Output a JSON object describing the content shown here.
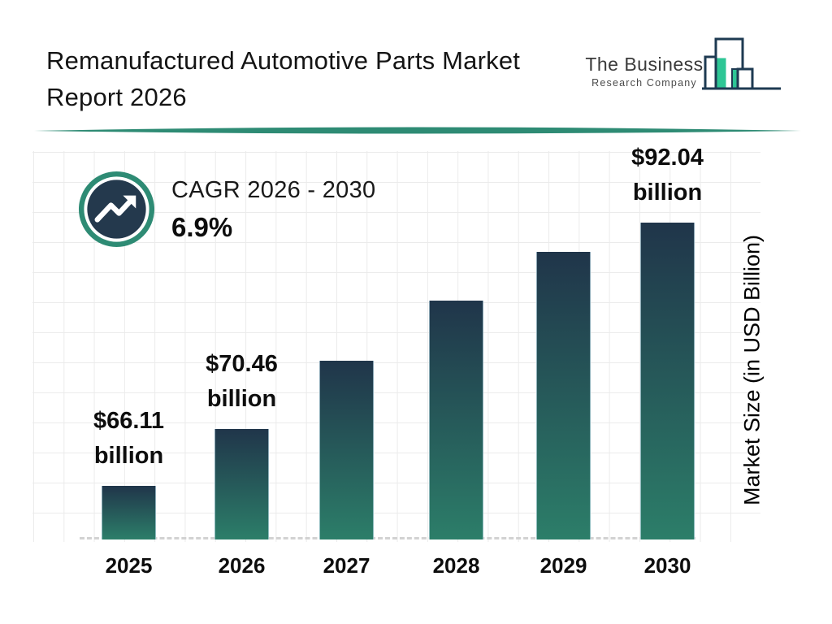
{
  "header": {
    "title": "Remanufactured Automotive Parts Market Report 2026",
    "logo": {
      "name_line1": "The Business",
      "name_line2": "Research Company"
    }
  },
  "cagr": {
    "label": "CAGR 2026 - 2030",
    "value": "6.9%"
  },
  "chart_data": {
    "type": "bar",
    "title": "Remanufactured Automotive Parts Market Report 2026",
    "categories": [
      "2025",
      "2026",
      "2027",
      "2028",
      "2029",
      "2030"
    ],
    "values": [
      66.11,
      70.46,
      75.32,
      80.52,
      86.08,
      92.04
    ],
    "values_labeled_on_chart": [
      true,
      true,
      false,
      false,
      false,
      true
    ],
    "value_label_prefix": "$",
    "value_label_unit": "billion",
    "xlabel": "",
    "ylabel": "Market Size (in USD Billion)",
    "grid": true,
    "baseline_style": "dashed",
    "legend": "none",
    "bar_rel_heights": [
      0.169,
      0.349,
      0.564,
      0.754,
      0.908,
      1.0
    ],
    "cagr_note": "CAGR 2026 - 2030: 6.9%"
  },
  "colors": {
    "bar_gradient_top": "#20354a",
    "bar_gradient_bottom": "#2c7e69",
    "accent_teal": "#2e8b74",
    "icon_inner_navy": "#24394d",
    "logo_green": "#2ec695",
    "logo_outline_navy": "#1e3a52",
    "grid_line": "#ebebeb",
    "baseline_dash": "#d2d2d2",
    "text_primary": "#111111"
  }
}
